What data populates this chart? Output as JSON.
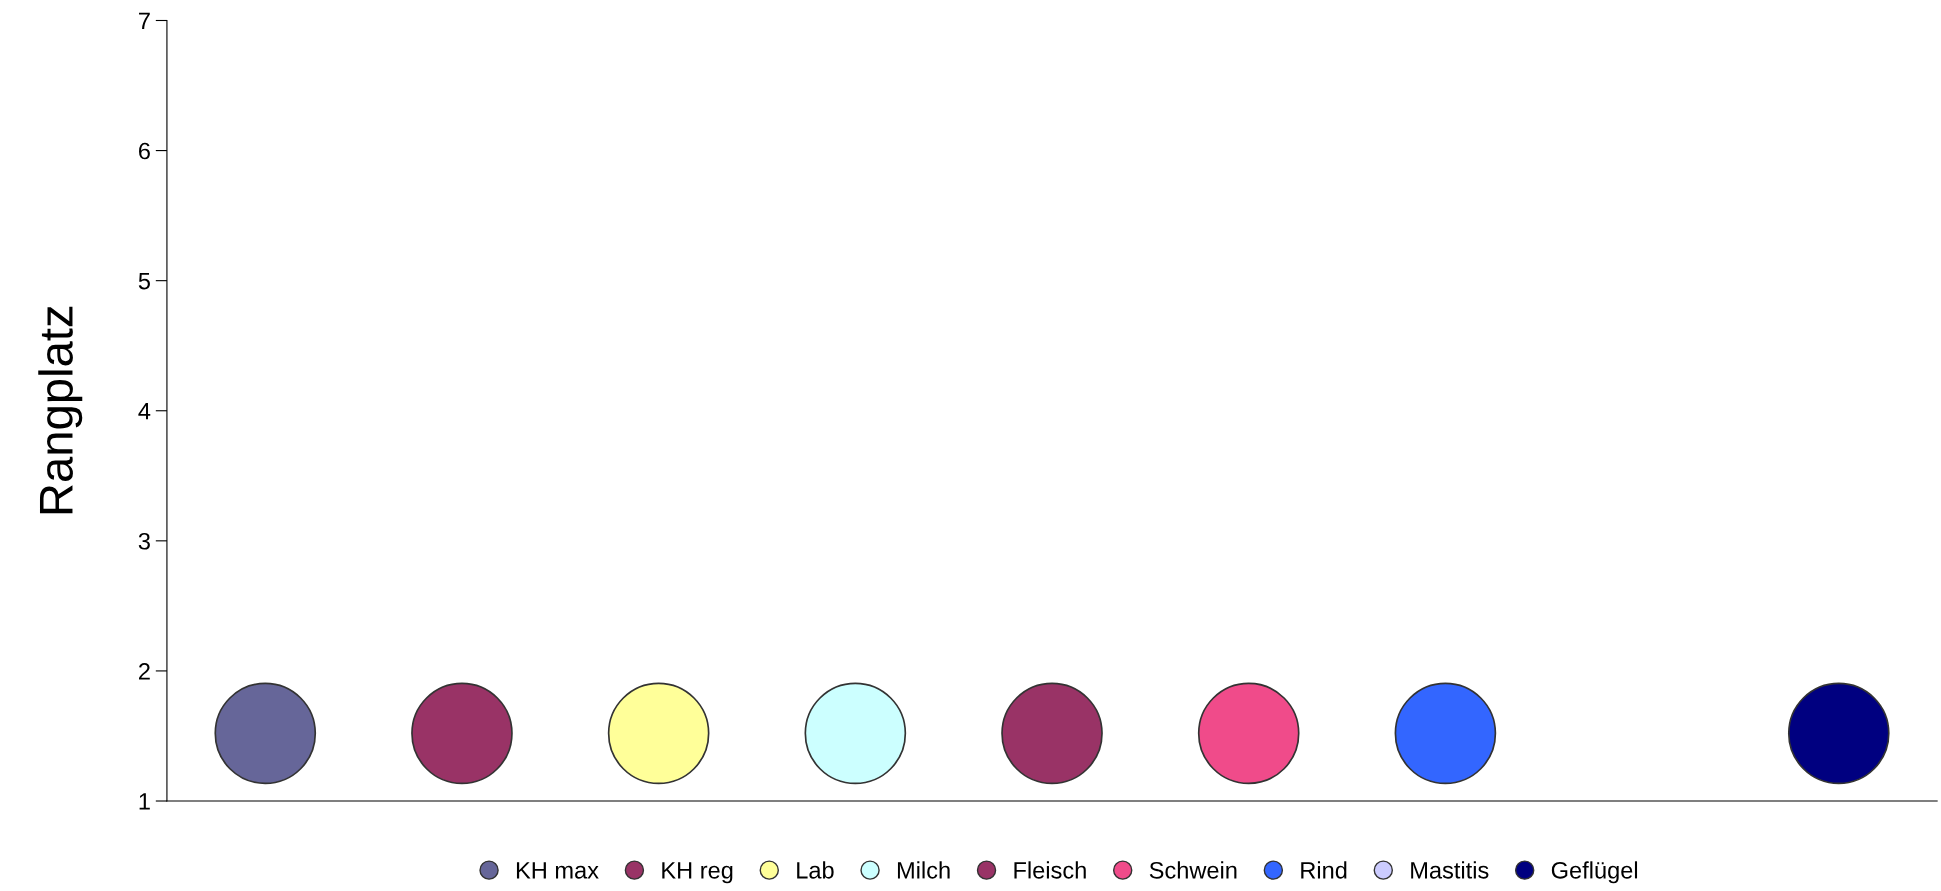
{
  "chart_data": {
    "type": "bubble",
    "ylabel": "Rangplatz",
    "categories": [
      null,
      null,
      null,
      null,
      null,
      null,
      null,
      null,
      null
    ],
    "ylim": [
      1,
      7
    ],
    "yticks": [
      1,
      2,
      3,
      4,
      5,
      6,
      7
    ],
    "grid": false,
    "legend": "bottom",
    "series": [
      {
        "name": "KH max",
        "color": "#666699",
        "values": [
          1.52,
          null,
          null,
          null,
          null,
          null,
          null,
          null,
          null
        ],
        "sizes": [
          1,
          null,
          null,
          null,
          null,
          null,
          null,
          null,
          null
        ]
      },
      {
        "name": "KH reg",
        "color": "#993366",
        "values": [
          null,
          1.52,
          null,
          null,
          null,
          null,
          null,
          null,
          null
        ],
        "sizes": [
          null,
          1,
          null,
          null,
          null,
          null,
          null,
          null,
          null
        ]
      },
      {
        "name": "Lab",
        "color": "#ffff99",
        "values": [
          null,
          null,
          1.52,
          null,
          null,
          null,
          null,
          null,
          null
        ],
        "sizes": [
          null,
          null,
          1,
          null,
          null,
          null,
          null,
          null,
          null
        ]
      },
      {
        "name": "Milch",
        "color": "#ccffff",
        "values": [
          null,
          null,
          null,
          1.52,
          null,
          null,
          null,
          null,
          null
        ],
        "sizes": [
          null,
          null,
          null,
          1,
          null,
          null,
          null,
          null,
          null
        ]
      },
      {
        "name": "Fleisch",
        "color": "#993366",
        "values": [
          null,
          null,
          null,
          null,
          1.52,
          null,
          null,
          null,
          null
        ],
        "sizes": [
          null,
          null,
          null,
          null,
          1,
          null,
          null,
          null,
          null
        ]
      },
      {
        "name": "Schwein",
        "color": "#f04b8a",
        "values": [
          null,
          null,
          null,
          null,
          null,
          1.52,
          null,
          null,
          null
        ],
        "sizes": [
          null,
          null,
          null,
          null,
          null,
          1,
          null,
          null,
          null
        ]
      },
      {
        "name": "Rind",
        "color": "#3366ff",
        "values": [
          null,
          null,
          null,
          null,
          null,
          null,
          1.52,
          null,
          null
        ],
        "sizes": [
          null,
          null,
          null,
          null,
          null,
          null,
          1,
          null,
          null
        ]
      },
      {
        "name": "Mastitis",
        "color": "#ccccff",
        "values": [
          null,
          null,
          null,
          null,
          null,
          null,
          null,
          null,
          null
        ],
        "sizes": [
          null,
          null,
          null,
          null,
          null,
          null,
          null,
          null,
          null
        ]
      },
      {
        "name": "Geflügel",
        "color": "#000080",
        "values": [
          null,
          null,
          null,
          null,
          null,
          null,
          null,
          null,
          1.52
        ],
        "sizes": [
          null,
          null,
          null,
          null,
          null,
          null,
          null,
          null,
          1
        ]
      }
    ]
  }
}
